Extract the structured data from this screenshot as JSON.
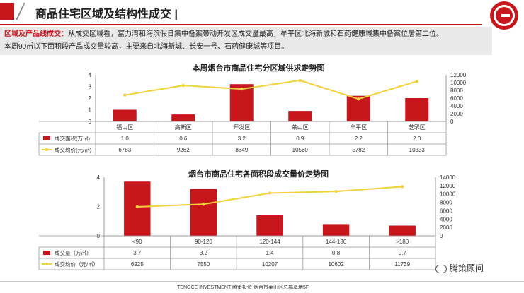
{
  "header": {
    "title": "商品住宅区域及结构性成交 |"
  },
  "summary": {
    "label": "区域及产品线成交：",
    "line1": "从成交区域看，富力湾和海滨假日集中备案带动开发区成交量最高，牟平区北海新城和石药健康城集中备案位居第二位。",
    "line2": "本周90㎡以下面积段产品成交量较高，主要来自北海新城、长安一号、石药健康城等项目。"
  },
  "chart_data": [
    {
      "type": "bar",
      "title": "本周烟台市商品住宅分区域供求走势图",
      "categories": [
        "福山区",
        "高新区",
        "开发区",
        "莱山区",
        "牟平区",
        "芝罘区"
      ],
      "series": [
        {
          "name": "成交面积(万㎡)",
          "type": "bar",
          "axis": "left",
          "values": [
            1.0,
            0.6,
            3.2,
            0.9,
            2.2,
            2.0
          ],
          "labels": [
            "1.0",
            "0.6",
            "3.2",
            "0.9",
            "2.2",
            "2.0"
          ]
        },
        {
          "name": "成交均价(元/㎡)",
          "type": "line",
          "axis": "right",
          "values": [
            6783,
            9262,
            8349,
            10560,
            5782,
            10333
          ],
          "labels": [
            "6783",
            "9262",
            "8349",
            "10560",
            "5782",
            "10333"
          ]
        }
      ],
      "ylim_left": [
        0,
        4
      ],
      "yticks_left": [
        "0",
        "1",
        "2",
        "3",
        "4"
      ],
      "ylim_right": [
        0,
        12000
      ],
      "yticks_right": [
        "0",
        "2000",
        "4000",
        "6000",
        "8000",
        "10000",
        "12000"
      ],
      "colors": {
        "bar": "#c8161d",
        "line": "#f2d23c"
      },
      "grid": true
    },
    {
      "type": "bar",
      "title": "烟台市商品住宅各面积段成交量价走势图",
      "categories": [
        "<90",
        "90-120",
        "120-144",
        "144-180",
        ">180"
      ],
      "series": [
        {
          "name": "成交量（万㎡）",
          "type": "bar",
          "axis": "left",
          "values": [
            3.7,
            3.2,
            1.4,
            0.8,
            0.7
          ],
          "labels": [
            "3.7",
            "3.2",
            "1.4",
            "0.8",
            "0.7"
          ]
        },
        {
          "name": "成交均价（元/㎡）",
          "type": "line",
          "axis": "right",
          "values": [
            6925,
            7550,
            10207,
            10602,
            11739
          ],
          "labels": [
            "6925",
            "7550",
            "10207",
            "10602",
            "11739"
          ]
        }
      ],
      "ylim_left": [
        0,
        4
      ],
      "yticks_left": [
        "0",
        "2",
        "4"
      ],
      "ylim_right": [
        0,
        14000
      ],
      "yticks_right": [
        "0",
        "2000",
        "4000",
        "6000",
        "8000",
        "10000",
        "12000",
        "14000"
      ],
      "colors": {
        "bar": "#c8161d",
        "line": "#f2d23c"
      },
      "grid": true
    }
  ],
  "footer": {
    "text": "TENGCE INVESTMENT  腾策投资    烟台市莱山区总部基地5F",
    "brand": "腾策顾问",
    "wechat_icon": "wechat-icon"
  }
}
